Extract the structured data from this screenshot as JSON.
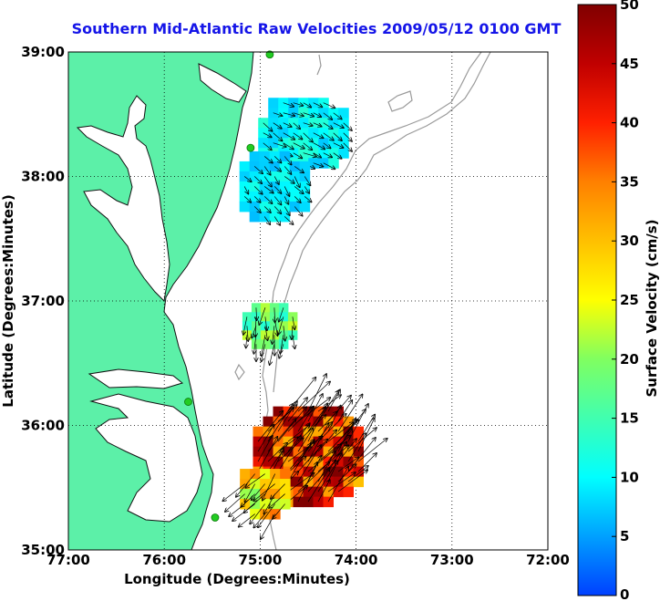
{
  "title": "Southern Mid-Atlantic Raw Velocities 2009/05/12 0100 GMT",
  "map": {
    "x_axis_label": "Longitude (Degrees:Minutes)",
    "y_axis_label": "Latitude (Degrees:Minutes)",
    "lon_ticks": [
      "77:00",
      "76:00",
      "75:00",
      "74:00",
      "73:00",
      "72:00"
    ],
    "lat_ticks": [
      "39:00",
      "38:00",
      "37:00",
      "36:00",
      "35:00"
    ],
    "lon_range": [
      -77,
      -72
    ],
    "lat_range": [
      35,
      39
    ],
    "grid": "dotted",
    "land_color": "#5cf0a8",
    "coastline_color": "#111111",
    "bathymetry_color": "#9a9a9a",
    "station_color": "#22cc22",
    "stations": [
      {
        "lon": -74.9,
        "lat": 38.98
      },
      {
        "lon": -75.1,
        "lat": 38.23
      },
      {
        "lon": -75.75,
        "lat": 36.19
      },
      {
        "lon": -75.47,
        "lat": 35.26
      }
    ],
    "velocity_patches": [
      {
        "name": "delaware-patch",
        "center_lon": -74.55,
        "center_lat": 38.35,
        "speed": 10,
        "direction_deg": 120
      },
      {
        "name": "chincoteague-patch",
        "center_lon": -74.85,
        "center_lat": 37.92,
        "speed": 9,
        "direction_deg": 140
      },
      {
        "name": "virginia-patch",
        "center_lon": -74.9,
        "center_lat": 36.8,
        "speed": 18,
        "direction_deg": 185
      },
      {
        "name": "hatteras-patch",
        "center_lon": -74.5,
        "center_lat": 35.75,
        "speed": 42,
        "direction_deg": 40
      },
      {
        "name": "hatteras-south-patch",
        "center_lon": -74.95,
        "center_lat": 35.45,
        "speed": 28,
        "direction_deg": 220
      }
    ]
  },
  "colorbar": {
    "label": "Surface Velocity (cm/s)",
    "min": 0,
    "max": 50,
    "ticks": [
      "0",
      "5",
      "10",
      "15",
      "20",
      "25",
      "30",
      "35",
      "40",
      "45",
      "50"
    ],
    "colormap": [
      "#0040ff",
      "#00a0ff",
      "#00ffff",
      "#40ffb0",
      "#80ff60",
      "#ffff00",
      "#ffc000",
      "#ff8000",
      "#ff2000",
      "#c00000",
      "#800000"
    ]
  }
}
